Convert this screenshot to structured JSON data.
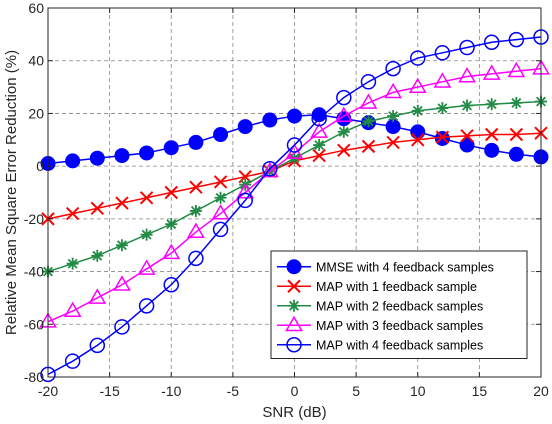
{
  "chart_data": {
    "type": "line",
    "title": "",
    "xlabel": "SNR (dB)",
    "ylabel": "Relative Mean Square Error Reduction (%)",
    "xlim": [
      -20,
      20
    ],
    "ylim": [
      -80,
      60
    ],
    "xticks": [
      -20,
      -15,
      -10,
      -5,
      0,
      5,
      10,
      15,
      20
    ],
    "yticks": [
      -80,
      -60,
      -40,
      -20,
      0,
      20,
      40,
      60
    ],
    "grid": true,
    "legend_position": "bottom-right",
    "x": [
      -20,
      -18,
      -16,
      -14,
      -12,
      -10,
      -8,
      -6,
      -4,
      -2,
      0,
      2,
      4,
      6,
      8,
      10,
      12,
      14,
      16,
      18,
      20
    ],
    "series": [
      {
        "name": "MMSE with 4 feedback samples",
        "color": "#0000ff",
        "marker": "filled-circle",
        "values": [
          1,
          2,
          3,
          4,
          5,
          7,
          9,
          12,
          15,
          17.5,
          19,
          19.5,
          18,
          16.5,
          15,
          13,
          10.5,
          8,
          6,
          4.5,
          3.5
        ]
      },
      {
        "name": "MAP with 1 feedback sample",
        "color": "#ff0000",
        "marker": "x",
        "values": [
          -20,
          -18,
          -16,
          -14,
          -12,
          -10,
          -8,
          -6,
          -4,
          -2,
          2,
          4,
          6,
          7.5,
          9,
          10,
          11,
          11.5,
          12,
          12,
          12.5
        ]
      },
      {
        "name": "MAP with 2 feedback samples",
        "color": "#228b45",
        "marker": "star",
        "values": [
          -40,
          -37,
          -34,
          -30,
          -26,
          -22,
          -17,
          -12,
          -7,
          -2,
          3,
          8,
          13,
          17,
          19,
          21,
          22,
          23,
          23.5,
          24,
          24.5
        ]
      },
      {
        "name": "MAP with 3 feedback samples",
        "color": "#ff00ff",
        "marker": "triangle",
        "values": [
          -59,
          -55,
          -50,
          -45,
          -39,
          -33,
          -25,
          -18,
          -10,
          -2,
          5,
          13,
          19,
          24,
          28,
          30,
          32,
          34,
          35,
          36,
          37
        ]
      },
      {
        "name": "MAP with 4 feedback samples",
        "color": "#0000ff",
        "marker": "open-circle",
        "values": [
          -79,
          -74,
          -68,
          -61,
          -53,
          -45,
          -35,
          -24,
          -13,
          -1,
          8,
          18,
          26,
          32,
          37,
          41,
          43,
          45,
          47,
          48,
          49
        ]
      }
    ]
  }
}
